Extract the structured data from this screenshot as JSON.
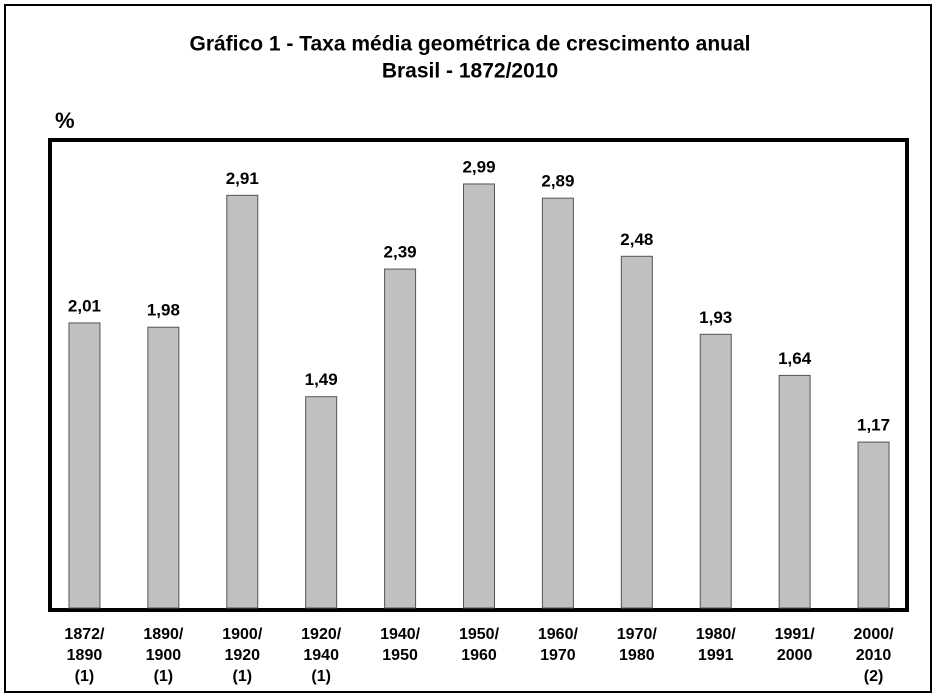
{
  "chart_data": {
    "type": "bar",
    "title": "Gráfico 1 - Taxa média geométrica de crescimento anual",
    "subtitle": "Brasil - 1872/2010",
    "y_label": "%",
    "categories": [
      [
        "1872/",
        "1890",
        "(1)"
      ],
      [
        "1890/",
        "1900",
        "(1)"
      ],
      [
        "1900/",
        "1920",
        "(1)"
      ],
      [
        "1920/",
        "1940",
        "(1)"
      ],
      [
        "1940/",
        "1950"
      ],
      [
        "1950/",
        "1960"
      ],
      [
        "1960/",
        "1970"
      ],
      [
        "1970/",
        "1980"
      ],
      [
        "1980/",
        "1991"
      ],
      [
        "1991/",
        "2000"
      ],
      [
        "2000/",
        "2010",
        "(2)"
      ]
    ],
    "values": [
      2.01,
      1.98,
      2.91,
      1.49,
      2.39,
      2.99,
      2.89,
      2.48,
      1.93,
      1.64,
      1.17
    ],
    "value_labels": [
      "2,01",
      "1,98",
      "2,91",
      "1,49",
      "2,39",
      "2,99",
      "2,89",
      "2,48",
      "1,93",
      "1,64",
      "1,17"
    ],
    "color": "#c0c0c0",
    "ylim": [
      0,
      3.3
    ]
  }
}
